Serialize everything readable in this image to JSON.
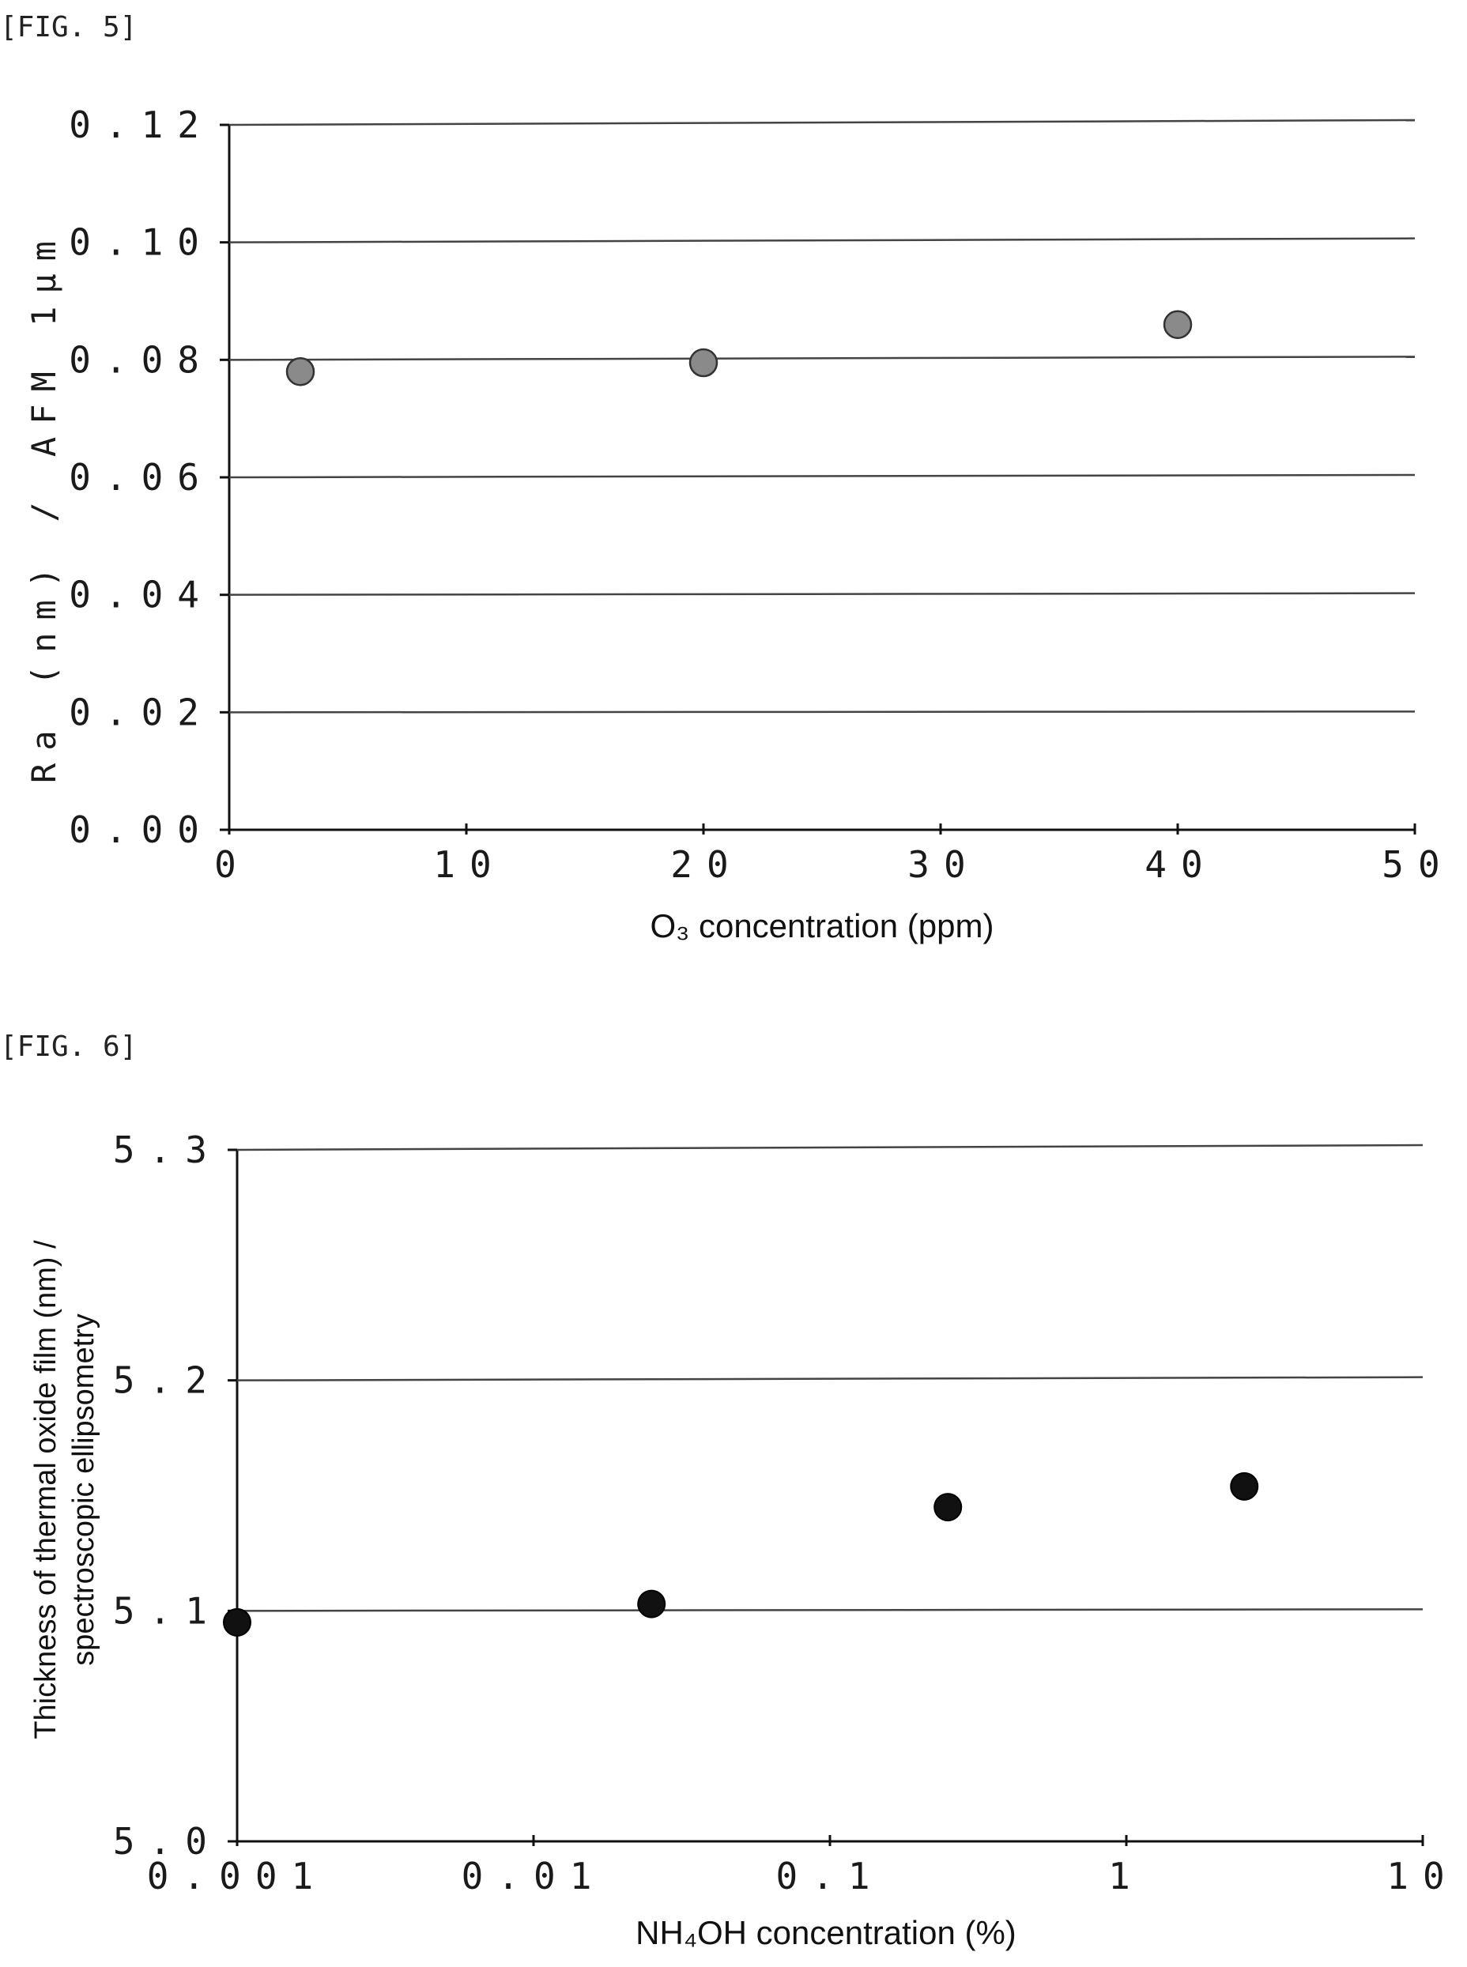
{
  "chart_data": [
    {
      "type": "scatter",
      "figure_label": "[FIG. 5]",
      "title": "",
      "xlabel": "O₃ concentration (ppm)",
      "ylabel": "Ra (nm) / AFM 1μm",
      "xlim": [
        0,
        50
      ],
      "ylim": [
        0,
        0.12
      ],
      "x_ticks": [
        "0",
        "10",
        "20",
        "30",
        "40",
        "50"
      ],
      "y_ticks": [
        "0.00",
        "0.02",
        "0.04",
        "0.06",
        "0.08",
        "0.10",
        "0.12"
      ],
      "grid": true,
      "points": [
        {
          "x": 3,
          "y": 0.078
        },
        {
          "x": 20,
          "y": 0.0795
        },
        {
          "x": 40,
          "y": 0.086
        }
      ],
      "marker_color": "#8a8a8a"
    },
    {
      "type": "scatter",
      "figure_label": "[FIG. 6]",
      "title": "",
      "xlabel": "NH₄OH concentration (%)",
      "ylabel_line1": "Thickness of thermal oxide film (nm) /",
      "ylabel_line2": "spectroscopic ellipsometry",
      "x_scale": "log",
      "xlim": [
        0.001,
        10
      ],
      "ylim": [
        5.0,
        5.3
      ],
      "x_ticks": [
        "0.001",
        "0.01",
        "0.1",
        "1",
        "10"
      ],
      "y_ticks": [
        "5.0",
        "5.1",
        "5.2",
        "5.3"
      ],
      "grid": true,
      "points": [
        {
          "x": 0.001,
          "y": 5.095
        },
        {
          "x": 0.025,
          "y": 5.103
        },
        {
          "x": 0.25,
          "y": 5.145
        },
        {
          "x": 2.5,
          "y": 5.154
        }
      ],
      "marker_color": "#111111"
    }
  ]
}
